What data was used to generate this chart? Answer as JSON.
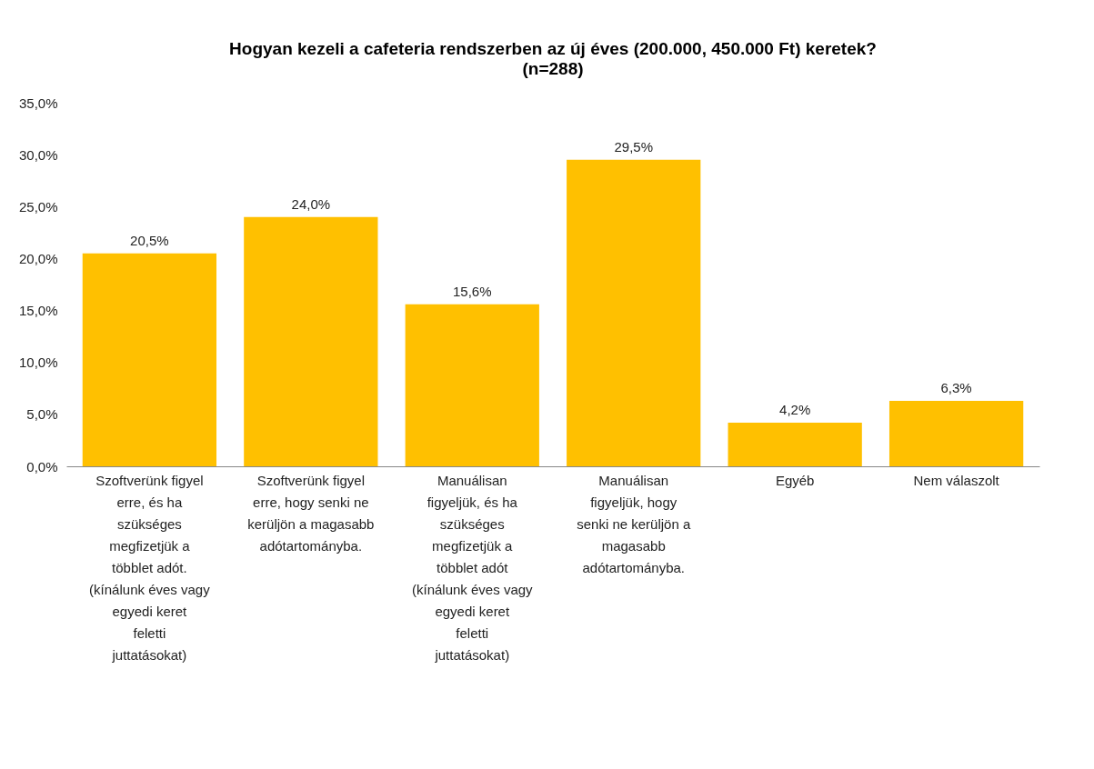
{
  "chart_data": {
    "type": "bar",
    "title": "Hogyan kezeli a cafeteria rendszerben az új éves (200.000, 450.000 Ft) keretek?",
    "subtitle": "(n=288)",
    "categories": [
      "Szoftverünk figyel erre, és ha szükséges megfizetjük a többlet adót. (kínálunk éves vagy egyedi keret feletti juttatásokat)",
      "Szoftverünk figyel erre, hogy senki ne kerüljön a magasabb adótartományba.",
      "Manuálisan figyeljük, és ha szükséges megfizetjük a többlet adót (kínálunk éves vagy egyedi keret feletti juttatásokat)",
      "Manuálisan figyeljük, hogy senki ne kerüljön a magasabb adótartományba.",
      "Egyéb",
      "Nem válaszolt"
    ],
    "values": [
      20.5,
      24.0,
      15.6,
      29.5,
      4.2,
      6.3
    ],
    "value_labels": [
      "20,5%",
      "24,0%",
      "15,6%",
      "29,5%",
      "4,2%",
      "6,3%"
    ],
    "color": "#ffc000",
    "ylim": [
      0,
      35
    ],
    "yticks": [
      {
        "value": 0,
        "label": "0,0%"
      },
      {
        "value": 5,
        "label": "5,0%"
      },
      {
        "value": 10,
        "label": "10,0%"
      },
      {
        "value": 15,
        "label": "15,0%"
      },
      {
        "value": 20,
        "label": "20,0%"
      },
      {
        "value": 25,
        "label": "25,0%"
      },
      {
        "value": 30,
        "label": "30,0%"
      },
      {
        "value": 35,
        "label": "35,0%"
      }
    ],
    "grid": false
  }
}
